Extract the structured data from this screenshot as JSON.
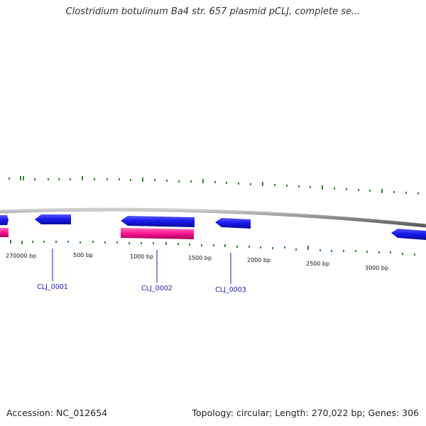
{
  "title": "Clostridium botulinum Ba4 str. 657 plasmid pCLJ, complete se...",
  "footer": {
    "accession": "Accession: NC_012654",
    "summary": "Topology: circular; Length: 270,022 bp; Genes: 306"
  },
  "colors": {
    "backbone": "#8c8c8c",
    "forward_gene": "#1a1aee",
    "reverse_gene": "#ff1493",
    "gc_tick": "#2e8b2e",
    "gene_label": "#1c1cb4"
  },
  "ruler_labels": [
    "270000 bp",
    "500 bp",
    "1000 bp",
    "1500 bp",
    "2000 bp",
    "2500 bp",
    "3000 bp"
  ],
  "gene_labels": [
    "CLJ_0001",
    "CLJ_0002",
    "CLJ_0003"
  ]
}
